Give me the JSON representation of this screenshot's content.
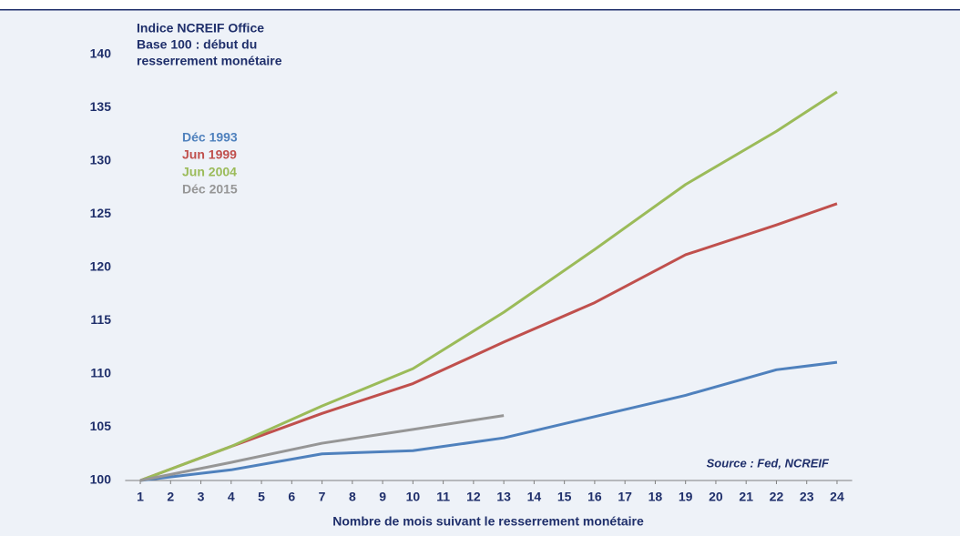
{
  "chart_data": {
    "type": "line",
    "title": [
      "Indice NCREIF Office",
      "Base 100 : début du",
      "resserrement monétaire"
    ],
    "x_label": "Nombre de mois suivant le resserrement monétaire",
    "annotation": "Source : Fed, NCREIF",
    "series": [
      {
        "name": "Déc 1993",
        "color": "#4f81bd",
        "x": [
          1,
          4,
          7,
          10,
          13,
          16,
          19,
          22,
          24
        ],
        "values": [
          100,
          101,
          102.5,
          102.8,
          104,
          106,
          108,
          110.4,
          111.1
        ]
      },
      {
        "name": "Jun 1999",
        "color": "#c0504d",
        "x": [
          1,
          4,
          7,
          10,
          13,
          16,
          19,
          22,
          24
        ],
        "values": [
          100,
          103.2,
          106.3,
          109.1,
          113,
          116.7,
          121.2,
          124,
          126
        ]
      },
      {
        "name": "Jun 2004",
        "color": "#9bbb59",
        "x": [
          1,
          4,
          7,
          10,
          13,
          16,
          19,
          22,
          24
        ],
        "values": [
          100,
          103.2,
          107,
          110.5,
          115.8,
          121.7,
          127.8,
          132.8,
          136.5
        ]
      },
      {
        "name": "Déc 2015",
        "color": "#969696",
        "x": [
          1,
          4,
          7,
          10,
          13
        ],
        "values": [
          100,
          101.7,
          103.5,
          104.8,
          106.1
        ]
      }
    ],
    "xlim": [
      0.5,
      24.5
    ],
    "xticks": [
      1,
      2,
      3,
      4,
      5,
      6,
      7,
      8,
      9,
      10,
      11,
      12,
      13,
      14,
      15,
      16,
      17,
      18,
      19,
      20,
      21,
      22,
      23,
      24
    ],
    "ylim": [
      100,
      140
    ],
    "yticks": [
      100,
      105,
      110,
      115,
      120,
      125,
      130,
      135,
      140
    ]
  }
}
